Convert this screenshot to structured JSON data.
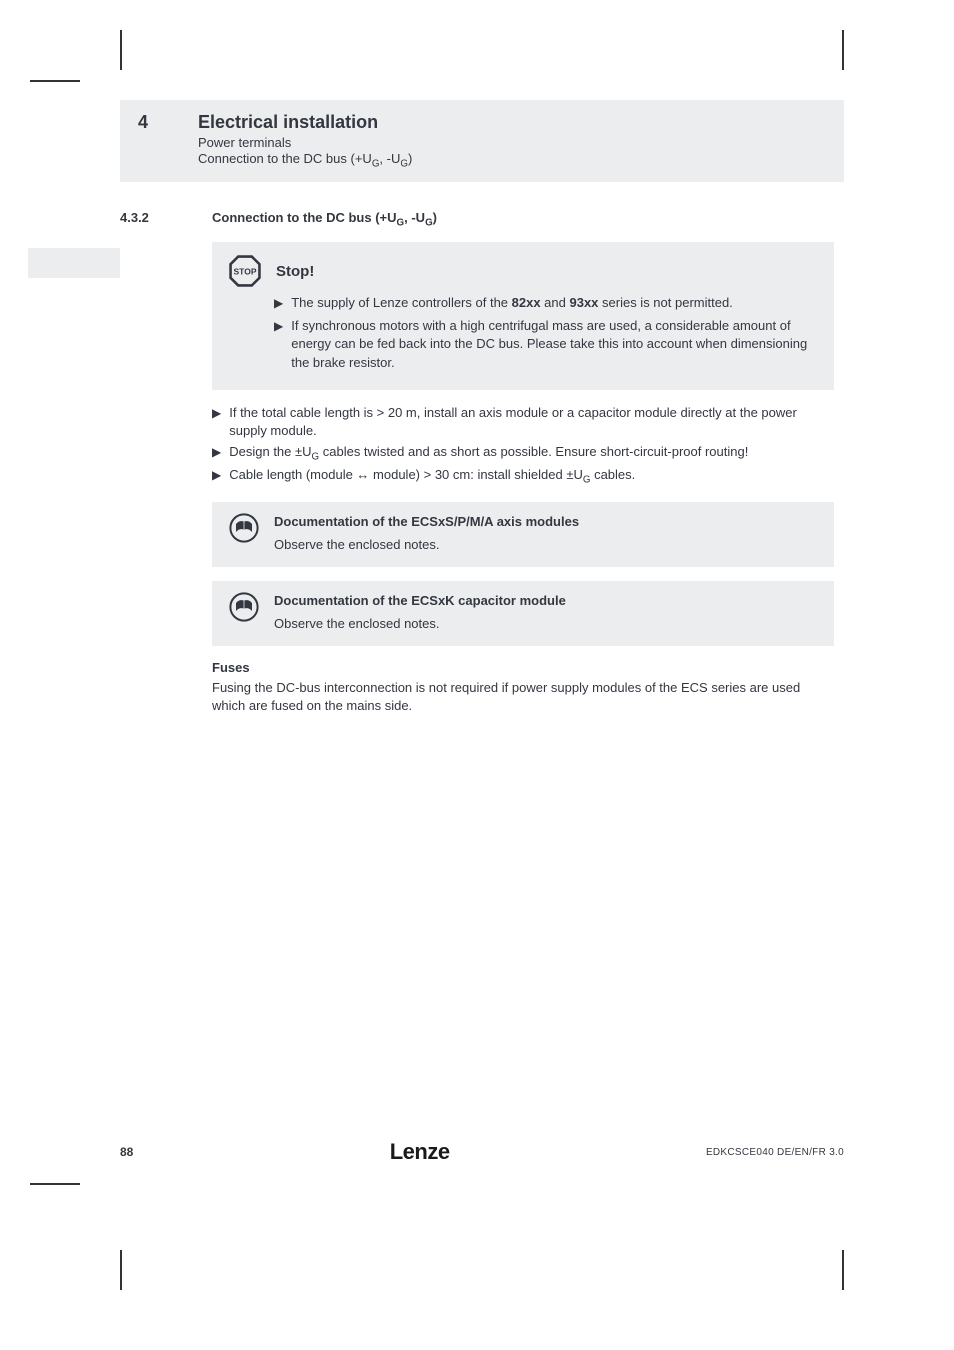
{
  "header": {
    "chapter_num": "4",
    "chapter_title": "Electrical installation",
    "section": "Power terminals",
    "subsection_html": "Connection to the DC bus (+U<sub>G</sub>, -U<sub>G</sub>)"
  },
  "heading": {
    "num": "4.3.2",
    "text_html": "Connection to the DC bus (+U<sub>G</sub>, -U<sub>G</sub>)"
  },
  "stop_box": {
    "title": "Stop!",
    "items": [
      "The supply of Lenze controllers of the <b>82xx</b> and <b>93xx</b> series is not permitted.",
      "If synchronous motors with a high centrifugal mass are used, a considerable amount of energy can be fed back into the DC bus. Please take this into account when dimensioning the brake resistor."
    ]
  },
  "plain_items": [
    "If the total cable length is &gt; 20 m, install an axis module or a capacitor module directly at the power supply module.",
    "Design the ±U<sub>G</sub> cables twisted and as short as possible. Ensure short-circuit-proof routing!",
    "Cable length (module ↔ module) &gt; 30 cm: install shielded ±U<sub>G</sub> cables."
  ],
  "doc_boxes": [
    {
      "title": "Documentation of the ECSxS/P/M/A axis modules",
      "body": "Observe the enclosed notes."
    },
    {
      "title": "Documentation of the ECSxK capacitor module",
      "body": "Observe the enclosed notes."
    }
  ],
  "fuses": {
    "head": "Fuses",
    "body": "Fusing the DC-bus interconnection is not required if power supply modules of the ECS series are used which are fused on the mains side."
  },
  "footer": {
    "page": "88",
    "logo": "Lenze",
    "doc": "EDKCSCE040  DE/EN/FR  3.0"
  },
  "colors": {
    "box_bg": "#ecedef",
    "text": "#333740"
  }
}
